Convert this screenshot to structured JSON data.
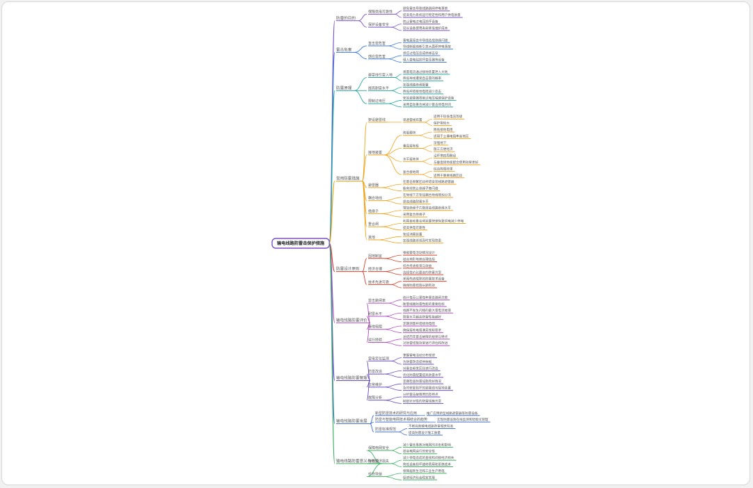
{
  "root": {
    "label": "输电线路防雷击保护措施"
  },
  "colors": {
    "branches": [
      "#7a4fc9",
      "#3b7bd8",
      "#27a6a0",
      "#f0a21a",
      "#d9412c",
      "#b14bc4",
      "#6a4bc4",
      "#4470d2",
      "#3bb063"
    ],
    "root_border": "#7b4fc9"
  },
  "branches": [
    {
      "label": "防雷的目的",
      "children": [
        {
          "label": "保障供电可靠性",
          "children": [
            {
              "label": "避免雷击导致线路跳闸停电事故"
            },
            {
              "label": "提高电力系统运行稳定性和用户供电质量"
            }
          ]
        },
        {
          "label": "保护设备安全",
          "children": [
            {
              "label": "防止雷电过电压损坏设备"
            },
            {
              "label": "延长设备使用寿命降低维护成本"
            }
          ]
        }
      ]
    },
    {
      "label": "雷击危害",
      "children": [
        {
          "label": "直击雷危害",
          "children": [
            {
              "label": "雷电直接击中导线造成绝缘闪络"
            },
            {
              "label": "导线断股熔断引发大面积停电事故"
            }
          ]
        },
        {
          "label": "感应雷危害",
          "children": [
            {
              "label": "感应过电压造成绝缘击穿"
            },
            {
              "label": "侵入变电站损坏变压器等设备"
            }
          ]
        }
      ]
    },
    {
      "label": "防雷原理",
      "children": [
        {
          "label": "避雷线引雷入地",
          "children": [
            {
              "label": "将雷电流通过接地装置泄入大地"
            },
            {
              "label": "降低导线遭受直击雷的概率"
            }
          ]
        },
        {
          "label": "提高耐雷水平",
          "children": [
            {
              "label": "加强线路绝缘配置"
            },
            {
              "label": "降低杆塔接地电阻减少反击"
            }
          ]
        },
        {
          "label": "限制过电压",
          "children": [
            {
              "label": "安装避雷器限制过电压幅值保护设备"
            },
            {
              "label": "采用自动重合闸减少雷击停电时间"
            }
          ]
        }
      ]
    },
    {
      "label": "常用防雷措施",
      "children": [
        {
          "label": "架设避雷线",
          "children": [
            {
              "label": "单避雷线布置",
              "children": [
                {
                  "label": "适用于较低电压等级"
                },
                {
                  "label": "保护角较大"
                }
              ]
            }
          ]
        },
        {
          "label": "接地装置",
          "children": [
            {
              "label": "降阻模块",
              "children": [
                {
                  "label": "降低接地电阻"
                },
                {
                  "label": "适用于土壤电阻率高地区"
                }
              ]
            },
            {
              "label": "垂直接地极",
              "children": [
                {
                  "label": "深埋地下"
                },
                {
                  "label": "施工方便经济"
                }
              ]
            },
            {
              "label": "水平接地体",
              "children": [
                {
                  "label": "沿杆塔四周敷设"
                },
                {
                  "label": "与垂直接地极配合使用效果更好"
                }
              ]
            },
            {
              "label": "复合接地网",
              "children": [
                {
                  "label": "综合降阻效果"
                },
                {
                  "label": "适用于重要线路区段"
                }
              ]
            }
          ]
        },
        {
          "label": "避雷器",
          "children": [
            {
              "label": "在雷击频繁区段杆塔安装线路避雷器"
            },
            {
              "label": "能有效防止绝缘子串闪络"
            }
          ]
        },
        {
          "label": "耦合地线",
          "children": [
            {
              "label": "在导线下方架设耦合地线增加分流"
            },
            {
              "label": "提高线路耐雷水平"
            }
          ]
        },
        {
          "label": "绝缘子",
          "children": [
            {
              "label": "增加绝缘子片数提高线路绝缘水平"
            },
            {
              "label": "采用复合绝缘子"
            }
          ]
        },
        {
          "label": "重合闸",
          "children": [
            {
              "label": "利用自动重合闸装置快速恢复供电减少停电"
            },
            {
              "label": "提高供电可靠性"
            }
          ]
        },
        {
          "label": "其他",
          "children": [
            {
              "label": "架设消雷装置"
            },
            {
              "label": "加强线路巡视及时发现隐患"
            }
          ]
        }
      ]
    },
    {
      "label": "防雷设计原则",
      "children": [
        {
          "label": "因地制宜",
          "children": [
            {
              "label": "根据雷电活动情况设计"
            },
            {
              "label": "结合地形地貌合理选择"
            }
          ]
        },
        {
          "label": "经济合理",
          "children": [
            {
              "label": "综合考虑投资与效益"
            },
            {
              "label": "选择性价比最高的防雷方案"
            }
          ]
        },
        {
          "label": "技术先进可靠",
          "children": [
            {
              "label": "采用先进成熟的防雷技术设备"
            },
            {
              "label": "确保防雷措施长期有效"
            }
          ]
        }
      ]
    },
    {
      "label": "输电线路防雷评价",
      "children": [
        {
          "label": "雷击跳闸率",
          "children": [
            {
              "label": "统计每百公里每年雷击跳闸次数"
            },
            {
              "label": "衡量线路防雷性能的重要指标"
            }
          ]
        },
        {
          "label": "耐雷水平",
          "children": [
            {
              "label": "线路不发生闪络的最大雷电流幅值"
            },
            {
              "label": "耐雷水平越高防雷性能越好"
            }
          ]
        },
        {
          "label": "接地电阻",
          "children": [
            {
              "label": "定期测量杆塔接地电阻"
            },
            {
              "label": "确保接地电阻满足规程要求"
            }
          ]
        },
        {
          "label": "运行经验",
          "children": [
            {
              "label": "总结历年雷击故障的规律与特点"
            },
            {
              "label": "对防雷措施效果进行评估和改进"
            }
          ]
        }
      ]
    },
    {
      "label": "输电线路防雷管理",
      "children": [
        {
          "label": "雷电定位监测",
          "children": [
            {
              "label": "掌握雷电活动分布规律"
            },
            {
              "label": "为防雷改造提供依据"
            }
          ]
        },
        {
          "label": "防雷改造",
          "children": [
            {
              "label": "对雷击频发区段进行改造"
            },
            {
              "label": "优化防雷配置提高防雷水平"
            }
          ]
        },
        {
          "label": "日常维护",
          "children": [
            {
              "label": "定期检查防雷设施完好情况"
            },
            {
              "label": "及时修复损坏的避雷线与接地装置"
            }
          ]
        },
        {
          "label": "故障分析",
          "children": [
            {
              "label": "分析雷击故障原因及特点"
            },
            {
              "label": "制定针对性的防雷措施方案"
            }
          ]
        }
      ]
    },
    {
      "label": "输电线路防雷发展",
      "children": [
        {
          "label": "新型防雷技术的研究与应用",
          "children": [
            {
              "label": "推广应用新型线路避雷器等防雷设备"
            }
          ]
        },
        {
          "label": "防雷与智能电网技术相结合的趋势",
          "children": [
            {
              "label": "实现防雷设施在线监测和智能化管理"
            }
          ]
        },
        {
          "label": "防雷标准规范",
          "children": [
            {
              "label": "不断完善输电线路防雷相关标准"
            },
            {
              "label": "提高防雷设计施工质量"
            }
          ]
        }
      ]
    },
    {
      "label": "输电线路防雷意义与效益",
      "children": [
        {
          "label": "保障电网安全",
          "children": [
            {
              "label": "减少雷击事故对电网的冲击和影响"
            },
            {
              "label": "提高电网运行的安全性"
            }
          ]
        },
        {
          "label": "降低经济损失",
          "children": [
            {
              "label": "减少停电造成的直接和间接经济损失"
            },
            {
              "label": "降低设备损坏维修费用和更换成本"
            }
          ]
        },
        {
          "label": "社会效益",
          "children": [
            {
              "label": "保障居民生活和工业生产用电"
            },
            {
              "label": "促进经济社会稳定发展"
            }
          ]
        }
      ]
    }
  ]
}
